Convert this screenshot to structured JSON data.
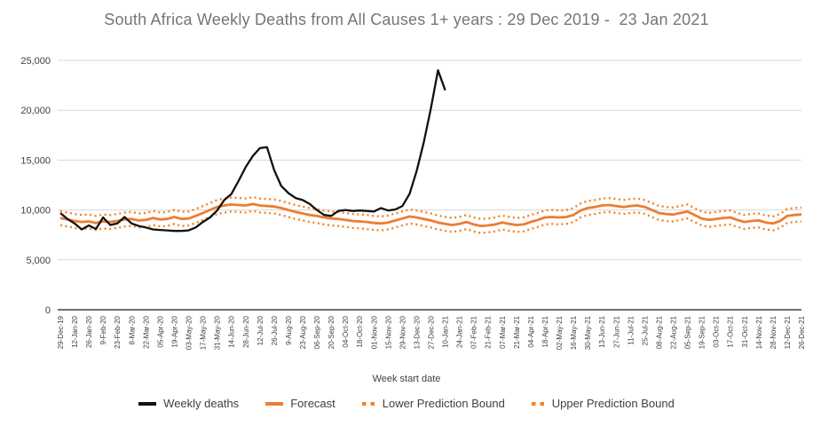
{
  "title": "South Africa Weekly Deaths from All Causes 1+ years : 29 Dec 2019 -  23 Jan 2021",
  "chart_data": {
    "type": "line",
    "title": "South Africa Weekly Deaths from All Causes 1+ years : 29 Dec 2019 -  23 Jan 2021",
    "xlabel": "Week start date",
    "ylabel": "",
    "ylim": [
      0,
      25000
    ],
    "yticks": [
      0,
      5000,
      10000,
      15000,
      20000,
      25000
    ],
    "ytick_labels": [
      "0",
      "5,000",
      "10,000",
      "15,000",
      "20,000",
      "25,000"
    ],
    "grid": "horizontal",
    "legend_position": "bottom",
    "n_weeks": 105,
    "x_tick_every_n_weeks": 2,
    "x_tick_labels": [
      "29-Dec-19",
      "12-Jan-20",
      "26-Jan-20",
      "9-Feb-20",
      "23-Feb-20",
      "8-Mar-20",
      "22-Mar-20",
      "05-Apr-20",
      "19-Apr-20",
      "03-May-20",
      "17-May-20",
      "31-May-20",
      "14-Jun-20",
      "28-Jun-20",
      "12-Jul-20",
      "26-Jul-20",
      "9-Aug-20",
      "23-Aug-20",
      "06-Sep-20",
      "20-Sep-20",
      "04-Oct-20",
      "18-Oct-20",
      "01-Nov-20",
      "15-Nov-20",
      "29-Nov-20",
      "13-Dec-20",
      "27-Dec-20",
      "10-Jan-21",
      "24-Jan-21",
      "07-Feb-21",
      "21-Feb-21",
      "07-Mar-21",
      "21-Mar-21",
      "04-Apr-21",
      "18-Apr-21",
      "02-May-21",
      "16-May-21",
      "30-May-21",
      "13-Jun-21",
      "27-Jun-21",
      "11-Jul-21",
      "25-Jul-21",
      "08-Aug-21",
      "22-Aug-21",
      "05-Sep-21",
      "19-Sep-21",
      "03-Oct-21",
      "17-Oct-21",
      "31-Oct-21",
      "14-Nov-21",
      "28-Nov-21",
      "12-Dec-21",
      "26-Dec-21"
    ],
    "series": [
      {
        "name": "Weekly deaths",
        "color": "#111111",
        "style": "solid",
        "start_week": 0,
        "values": [
          9700,
          9100,
          8650,
          8050,
          8450,
          8100,
          9250,
          8500,
          8650,
          9300,
          8650,
          8400,
          8250,
          8050,
          8000,
          7950,
          7900,
          7900,
          7950,
          8250,
          8800,
          9250,
          9950,
          11000,
          11600,
          12900,
          14300,
          15400,
          16200,
          16300,
          14000,
          12400,
          11700,
          11200,
          11000,
          10600,
          10000,
          9500,
          9400,
          9900,
          10000,
          9900,
          9950,
          9900,
          9850,
          10200,
          9950,
          10050,
          10400,
          11600,
          13900,
          16800,
          20200,
          24000,
          22000
        ]
      },
      {
        "name": "Forecast",
        "color": "#ED7D31",
        "style": "solid",
        "start_week": 0,
        "values": [
          9200,
          9050,
          8900,
          8800,
          8850,
          8700,
          8850,
          8800,
          8900,
          9050,
          9100,
          8950,
          9000,
          9200,
          9050,
          9100,
          9300,
          9100,
          9150,
          9400,
          9700,
          10000,
          10300,
          10450,
          10550,
          10500,
          10450,
          10600,
          10450,
          10400,
          10350,
          10200,
          10000,
          9800,
          9650,
          9500,
          9400,
          9250,
          9150,
          9100,
          9000,
          8900,
          8850,
          8800,
          8700,
          8650,
          8750,
          8950,
          9150,
          9350,
          9250,
          9100,
          8950,
          8750,
          8600,
          8500,
          8600,
          8800,
          8550,
          8400,
          8450,
          8550,
          8750,
          8600,
          8500,
          8550,
          8800,
          9000,
          9250,
          9300,
          9250,
          9300,
          9500,
          9950,
          10200,
          10300,
          10450,
          10500,
          10400,
          10300,
          10400,
          10450,
          10300,
          10000,
          9700,
          9600,
          9550,
          9700,
          9850,
          9500,
          9150,
          9000,
          9100,
          9200,
          9250,
          9000,
          8800,
          8900,
          8950,
          8750,
          8650,
          8900,
          9400,
          9500,
          9550
        ]
      },
      {
        "name": "Lower Prediction Bound",
        "color": "#F58220",
        "style": "dotted",
        "start_week": 0,
        "values": [
          8500,
          8350,
          8200,
          8100,
          8150,
          8000,
          8150,
          8100,
          8200,
          8350,
          8400,
          8250,
          8300,
          8500,
          8350,
          8400,
          8600,
          8400,
          8450,
          8700,
          9000,
          9300,
          9600,
          9750,
          9850,
          9800,
          9750,
          9900,
          9750,
          9700,
          9650,
          9500,
          9300,
          9100,
          8950,
          8800,
          8700,
          8550,
          8450,
          8400,
          8300,
          8200,
          8150,
          8100,
          8000,
          7950,
          8050,
          8250,
          8450,
          8650,
          8550,
          8400,
          8250,
          8050,
          7900,
          7800,
          7900,
          8100,
          7850,
          7700,
          7750,
          7850,
          8050,
          7900,
          7800,
          7850,
          8100,
          8300,
          8550,
          8600,
          8550,
          8600,
          8800,
          9250,
          9500,
          9600,
          9750,
          9800,
          9700,
          9600,
          9700,
          9750,
          9600,
          9300,
          9000,
          8900,
          8850,
          9000,
          9150,
          8800,
          8450,
          8300,
          8400,
          8500,
          8550,
          8300,
          8100,
          8200,
          8250,
          8050,
          7950,
          8200,
          8700,
          8800,
          8850
        ]
      },
      {
        "name": "Upper Prediction Bound",
        "color": "#F58220",
        "style": "dotted",
        "start_week": 0,
        "values": [
          9900,
          9750,
          9600,
          9500,
          9550,
          9400,
          9550,
          9500,
          9600,
          9750,
          9800,
          9650,
          9700,
          9900,
          9750,
          9800,
          10000,
          9800,
          9850,
          10100,
          10400,
          10700,
          11000,
          11150,
          11250,
          11200,
          11150,
          11300,
          11150,
          11100,
          11050,
          10900,
          10700,
          10500,
          10350,
          10200,
          10100,
          9950,
          9850,
          9800,
          9700,
          9600,
          9550,
          9500,
          9400,
          9350,
          9450,
          9650,
          9850,
          10050,
          9950,
          9800,
          9650,
          9450,
          9300,
          9200,
          9300,
          9500,
          9250,
          9100,
          9150,
          9250,
          9450,
          9300,
          9200,
          9250,
          9500,
          9700,
          9950,
          10000,
          9950,
          10000,
          10200,
          10650,
          10900,
          11000,
          11150,
          11200,
          11100,
          11000,
          11100,
          11150,
          11000,
          10700,
          10400,
          10300,
          10250,
          10400,
          10550,
          10200,
          9850,
          9700,
          9800,
          9900,
          9950,
          9700,
          9500,
          9600,
          9650,
          9450,
          9350,
          9600,
          10100,
          10200,
          10250
        ]
      }
    ]
  },
  "colors": {
    "background": "#ffffff",
    "title_text": "#757575",
    "axis_text": "#404040",
    "gridline": "#D9D9D9",
    "axis_line": "#404040",
    "weekly_deaths": "#111111",
    "forecast": "#ED7D31",
    "prediction_bounds": "#F58220"
  }
}
